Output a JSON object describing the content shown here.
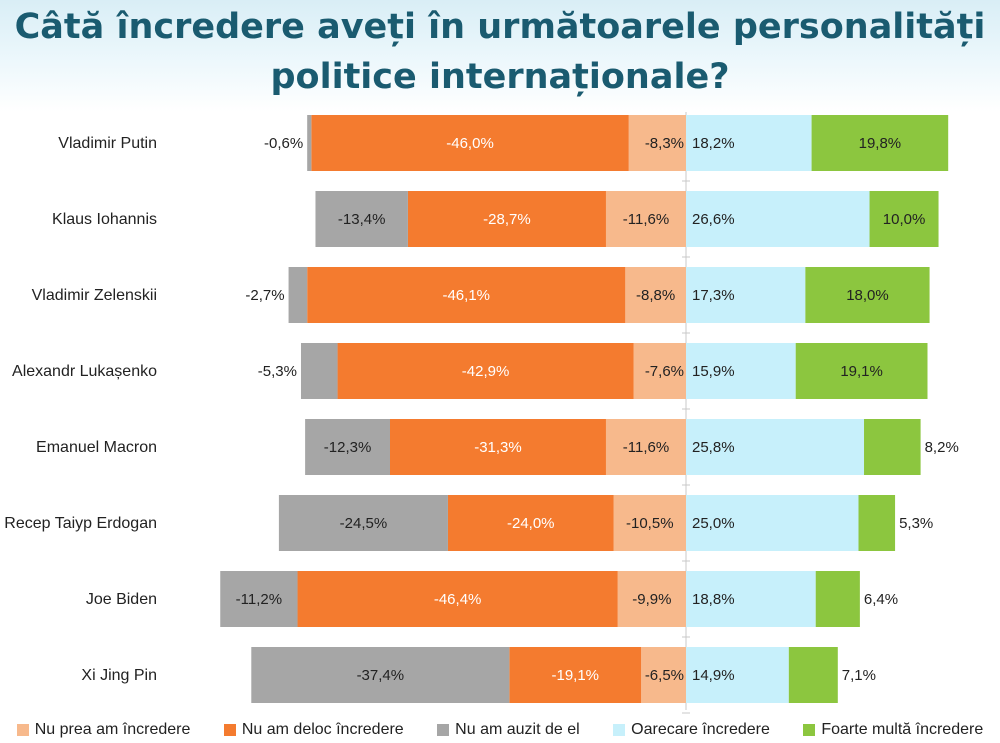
{
  "title_lines": [
    "Câtă încredere aveți în următoarele personalități",
    "politice internaționale?"
  ],
  "chart_data": {
    "type": "bar",
    "orientation": "horizontal",
    "stacked": true,
    "diverging": true,
    "title": "Câtă încredere aveți în următoarele personalități politice internaționale?",
    "categories": [
      "Vladimir Putin",
      "Klaus Iohannis",
      "Vladimir Zelenskii",
      "Alexandr Lukașenko",
      "Emanuel Macron",
      "Recep Taiyp Erdogan",
      "Joe Biden",
      "Xi Jing Pin"
    ],
    "series": [
      {
        "name": "Nu prea am încredere",
        "color": "#f7b98c",
        "side": "negative",
        "values": [
          8.3,
          11.6,
          8.8,
          7.6,
          11.6,
          10.5,
          9.9,
          6.5
        ],
        "labels": [
          "-8,3%",
          "-11,6%",
          "-8,8%",
          "-7,6%",
          "-11,6%",
          "-10,5%",
          "-9,9%",
          "-6,5%"
        ]
      },
      {
        "name": "Nu am deloc încredere",
        "color": "#f47b2f",
        "side": "negative",
        "values": [
          46.0,
          28.7,
          46.1,
          42.9,
          31.3,
          24.0,
          46.4,
          19.1
        ],
        "labels": [
          "-46,0%",
          "-28,7%",
          "-46,1%",
          "-42,9%",
          "-31,3%",
          "-24,0%",
          "-46,4%",
          "-19,1%"
        ]
      },
      {
        "name": "Nu am auzit de el",
        "color": "#a6a6a6",
        "side": "negative",
        "values": [
          0.6,
          13.4,
          2.7,
          5.3,
          12.3,
          24.5,
          11.2,
          37.4
        ],
        "labels": [
          "-0,6%",
          "-13,4%",
          "-2,7%",
          "-5,3%",
          "-12,3%",
          "-24,5%",
          "-11,2%",
          "-37,4%"
        ]
      },
      {
        "name": "Oarecare încredere",
        "color": "#c7f0fb",
        "side": "positive",
        "values": [
          18.2,
          26.6,
          17.3,
          15.9,
          25.8,
          25.0,
          18.8,
          14.9
        ],
        "labels": [
          "18,2%",
          "26,6%",
          "17,3%",
          "15,9%",
          "25,8%",
          "25,0%",
          "18,8%",
          "14,9%"
        ]
      },
      {
        "name": "Foarte multă încredere",
        "color": "#8cc63f",
        "side": "positive",
        "values": [
          19.8,
          10.0,
          18.0,
          19.1,
          8.2,
          5.3,
          6.4,
          7.1
        ],
        "labels": [
          "19,8%",
          "10,0%",
          "18,0%",
          "19,1%",
          "8,2%",
          "5,3%",
          "6,4%",
          "7,1%"
        ]
      }
    ],
    "legend_position": "bottom",
    "grid": false
  },
  "legend": [
    {
      "label": "Nu prea am încredere",
      "color": "#f7b98c"
    },
    {
      "label": "Nu am deloc încredere",
      "color": "#f47b2f"
    },
    {
      "label": "Nu am auzit de el",
      "color": "#a6a6a6"
    },
    {
      "label": "Oarecare încredere",
      "color": "#c7f0fb"
    },
    {
      "label": "Foarte multă încredere",
      "color": "#8cc63f"
    }
  ]
}
